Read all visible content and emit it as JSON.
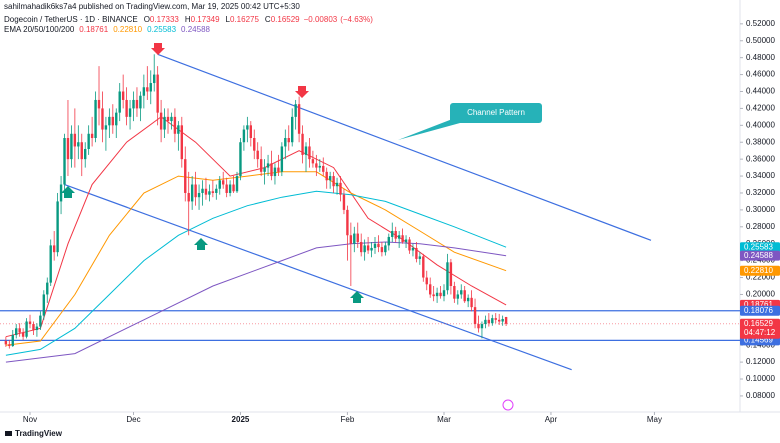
{
  "header": {
    "publisher": "sahilmahadik6ks7a4 published on TradingView.com, Mar 19, 2025 00:42 UTC+5:30"
  },
  "footer": {
    "brand": "TradingView"
  },
  "chart_data": {
    "type": "candlestick",
    "title": "Dogecoin / TetherUS · 1D · BINANCE",
    "ohlc_legend": [
      {
        "label": "O",
        "value": 0.17333
      },
      {
        "label": "H",
        "value": 0.17349
      },
      {
        "label": "L",
        "value": 0.16275
      },
      {
        "label": "C",
        "value": 0.16529
      }
    ],
    "change": {
      "value": -0.00803,
      "label": "−0.00803"
    },
    "change_pct": {
      "value": -4.63,
      "label": "(−4.63%)"
    },
    "countdown": "04:47:12",
    "up_color": "#089981",
    "down_color": "#f23645",
    "ohlc": [
      [
        0.145,
        0.15,
        0.138,
        0.141
      ],
      [
        0.141,
        0.146,
        0.136,
        0.139
      ],
      [
        0.139,
        0.158,
        0.138,
        0.152
      ],
      [
        0.152,
        0.165,
        0.148,
        0.16
      ],
      [
        0.16,
        0.166,
        0.15,
        0.155
      ],
      [
        0.155,
        0.16,
        0.146,
        0.15
      ],
      [
        0.15,
        0.172,
        0.148,
        0.168
      ],
      [
        0.168,
        0.176,
        0.16,
        0.165
      ],
      [
        0.165,
        0.168,
        0.152,
        0.158
      ],
      [
        0.158,
        0.166,
        0.15,
        0.162
      ],
      [
        0.162,
        0.18,
        0.158,
        0.175
      ],
      [
        0.175,
        0.205,
        0.17,
        0.2
      ],
      [
        0.2,
        0.22,
        0.19,
        0.214
      ],
      [
        0.214,
        0.265,
        0.21,
        0.258
      ],
      [
        0.258,
        0.275,
        0.24,
        0.25
      ],
      [
        0.25,
        0.32,
        0.245,
        0.31
      ],
      [
        0.31,
        0.34,
        0.295,
        0.33
      ],
      [
        0.33,
        0.39,
        0.32,
        0.385
      ],
      [
        0.385,
        0.43,
        0.34,
        0.36
      ],
      [
        0.36,
        0.4,
        0.35,
        0.39
      ],
      [
        0.39,
        0.42,
        0.35,
        0.375
      ],
      [
        0.375,
        0.4,
        0.36,
        0.38
      ],
      [
        0.38,
        0.39,
        0.34,
        0.36
      ],
      [
        0.36,
        0.38,
        0.35,
        0.372
      ],
      [
        0.372,
        0.4,
        0.365,
        0.39
      ],
      [
        0.39,
        0.41,
        0.375,
        0.385
      ],
      [
        0.385,
        0.44,
        0.38,
        0.43
      ],
      [
        0.43,
        0.47,
        0.4,
        0.42
      ],
      [
        0.42,
        0.44,
        0.38,
        0.395
      ],
      [
        0.395,
        0.41,
        0.37,
        0.4
      ],
      [
        0.4,
        0.42,
        0.385,
        0.41
      ],
      [
        0.41,
        0.425,
        0.39,
        0.4
      ],
      [
        0.4,
        0.42,
        0.385,
        0.415
      ],
      [
        0.415,
        0.45,
        0.405,
        0.44
      ],
      [
        0.44,
        0.46,
        0.42,
        0.43
      ],
      [
        0.43,
        0.445,
        0.4,
        0.41
      ],
      [
        0.41,
        0.43,
        0.395,
        0.42
      ],
      [
        0.42,
        0.44,
        0.405,
        0.43
      ],
      [
        0.43,
        0.445,
        0.41,
        0.42
      ],
      [
        0.42,
        0.44,
        0.405,
        0.435
      ],
      [
        0.435,
        0.46,
        0.42,
        0.445
      ],
      [
        0.445,
        0.47,
        0.43,
        0.44
      ],
      [
        0.44,
        0.465,
        0.425,
        0.45
      ],
      [
        0.45,
        0.484,
        0.44,
        0.46
      ],
      [
        0.46,
        0.47,
        0.4,
        0.415
      ],
      [
        0.415,
        0.43,
        0.38,
        0.395
      ],
      [
        0.395,
        0.42,
        0.385,
        0.41
      ],
      [
        0.41,
        0.42,
        0.39,
        0.405
      ],
      [
        0.405,
        0.415,
        0.395,
        0.41
      ],
      [
        0.41,
        0.42,
        0.38,
        0.39
      ],
      [
        0.39,
        0.405,
        0.37,
        0.4
      ],
      [
        0.4,
        0.41,
        0.35,
        0.36
      ],
      [
        0.36,
        0.375,
        0.31,
        0.32
      ],
      [
        0.32,
        0.345,
        0.27,
        0.31
      ],
      [
        0.31,
        0.34,
        0.3,
        0.33
      ],
      [
        0.33,
        0.345,
        0.305,
        0.315
      ],
      [
        0.315,
        0.33,
        0.3,
        0.32
      ],
      [
        0.32,
        0.335,
        0.305,
        0.325
      ],
      [
        0.325,
        0.338,
        0.312,
        0.318
      ],
      [
        0.318,
        0.33,
        0.31,
        0.322
      ],
      [
        0.322,
        0.335,
        0.315,
        0.32
      ],
      [
        0.32,
        0.33,
        0.312,
        0.325
      ],
      [
        0.325,
        0.34,
        0.318,
        0.335
      ],
      [
        0.335,
        0.345,
        0.325,
        0.33
      ],
      [
        0.33,
        0.338,
        0.315,
        0.32
      ],
      [
        0.32,
        0.335,
        0.316,
        0.33
      ],
      [
        0.33,
        0.34,
        0.32,
        0.322
      ],
      [
        0.322,
        0.345,
        0.32,
        0.34
      ],
      [
        0.34,
        0.385,
        0.335,
        0.38
      ],
      [
        0.38,
        0.4,
        0.37,
        0.395
      ],
      [
        0.395,
        0.41,
        0.38,
        0.4
      ],
      [
        0.4,
        0.405,
        0.375,
        0.385
      ],
      [
        0.385,
        0.395,
        0.36,
        0.37
      ],
      [
        0.37,
        0.38,
        0.35,
        0.36
      ],
      [
        0.36,
        0.375,
        0.34,
        0.345
      ],
      [
        0.345,
        0.36,
        0.33,
        0.35
      ],
      [
        0.35,
        0.365,
        0.34,
        0.355
      ],
      [
        0.355,
        0.37,
        0.335,
        0.34
      ],
      [
        0.34,
        0.355,
        0.33,
        0.35
      ],
      [
        0.35,
        0.365,
        0.34,
        0.345
      ],
      [
        0.345,
        0.38,
        0.34,
        0.375
      ],
      [
        0.375,
        0.395,
        0.36,
        0.385
      ],
      [
        0.385,
        0.4,
        0.37,
        0.38
      ],
      [
        0.38,
        0.42,
        0.375,
        0.41
      ],
      [
        0.41,
        0.43,
        0.395,
        0.425
      ],
      [
        0.425,
        0.434,
        0.38,
        0.39
      ],
      [
        0.39,
        0.4,
        0.355,
        0.365
      ],
      [
        0.365,
        0.38,
        0.345,
        0.375
      ],
      [
        0.375,
        0.385,
        0.35,
        0.36
      ],
      [
        0.36,
        0.37,
        0.35,
        0.355
      ],
      [
        0.355,
        0.365,
        0.34,
        0.35
      ],
      [
        0.35,
        0.36,
        0.345,
        0.352
      ],
      [
        0.352,
        0.362,
        0.34,
        0.345
      ],
      [
        0.345,
        0.35,
        0.325,
        0.335
      ],
      [
        0.335,
        0.345,
        0.325,
        0.34
      ],
      [
        0.34,
        0.345,
        0.32,
        0.328
      ],
      [
        0.328,
        0.338,
        0.318,
        0.332
      ],
      [
        0.332,
        0.34,
        0.31,
        0.318
      ],
      [
        0.318,
        0.325,
        0.295,
        0.3
      ],
      [
        0.3,
        0.305,
        0.24,
        0.27
      ],
      [
        0.27,
        0.285,
        0.21,
        0.26
      ],
      [
        0.26,
        0.28,
        0.25,
        0.272
      ],
      [
        0.272,
        0.285,
        0.255,
        0.262
      ],
      [
        0.262,
        0.272,
        0.245,
        0.25
      ],
      [
        0.25,
        0.265,
        0.24,
        0.258
      ],
      [
        0.258,
        0.268,
        0.248,
        0.252
      ],
      [
        0.252,
        0.262,
        0.244,
        0.255
      ],
      [
        0.255,
        0.268,
        0.248,
        0.26
      ],
      [
        0.26,
        0.27,
        0.25,
        0.256
      ],
      [
        0.256,
        0.262,
        0.245,
        0.25
      ],
      [
        0.25,
        0.262,
        0.246,
        0.258
      ],
      [
        0.258,
        0.272,
        0.252,
        0.268
      ],
      [
        0.268,
        0.285,
        0.262,
        0.275
      ],
      [
        0.275,
        0.28,
        0.262,
        0.266
      ],
      [
        0.266,
        0.275,
        0.255,
        0.27
      ],
      [
        0.27,
        0.278,
        0.26,
        0.262
      ],
      [
        0.262,
        0.27,
        0.255,
        0.265
      ],
      [
        0.265,
        0.268,
        0.248,
        0.252
      ],
      [
        0.252,
        0.26,
        0.245,
        0.255
      ],
      [
        0.255,
        0.262,
        0.238,
        0.242
      ],
      [
        0.242,
        0.25,
        0.235,
        0.245
      ],
      [
        0.245,
        0.248,
        0.215,
        0.22
      ],
      [
        0.22,
        0.228,
        0.205,
        0.212
      ],
      [
        0.212,
        0.22,
        0.196,
        0.2
      ],
      [
        0.2,
        0.21,
        0.192,
        0.198
      ],
      [
        0.198,
        0.208,
        0.19,
        0.202
      ],
      [
        0.202,
        0.21,
        0.195,
        0.198
      ],
      [
        0.198,
        0.212,
        0.192,
        0.205
      ],
      [
        0.205,
        0.248,
        0.2,
        0.238
      ],
      [
        0.238,
        0.242,
        0.2,
        0.21
      ],
      [
        0.21,
        0.215,
        0.19,
        0.195
      ],
      [
        0.195,
        0.205,
        0.188,
        0.2
      ],
      [
        0.2,
        0.212,
        0.195,
        0.205
      ],
      [
        0.205,
        0.21,
        0.19,
        0.192
      ],
      [
        0.192,
        0.2,
        0.185,
        0.196
      ],
      [
        0.196,
        0.205,
        0.18,
        0.185
      ],
      [
        0.185,
        0.195,
        0.16,
        0.165
      ],
      [
        0.165,
        0.175,
        0.155,
        0.16
      ],
      [
        0.16,
        0.168,
        0.148,
        0.165
      ],
      [
        0.165,
        0.175,
        0.16,
        0.17
      ],
      [
        0.17,
        0.178,
        0.162,
        0.166
      ],
      [
        0.166,
        0.176,
        0.163,
        0.172
      ],
      [
        0.172,
        0.178,
        0.166,
        0.17
      ],
      [
        0.17,
        0.177,
        0.164,
        0.168
      ],
      [
        0.168,
        0.175,
        0.163,
        0.171
      ],
      [
        0.17333,
        0.17349,
        0.16275,
        0.16529
      ]
    ],
    "ema_title": "EMA 20/50/100/200",
    "ema": [
      {
        "color": "#f23645",
        "x": [
          0,
          10,
          18,
          25,
          35,
          45,
          55,
          65,
          75,
          85,
          95,
          105,
          115,
          125,
          135,
          145
        ],
        "values": [
          0.15,
          0.16,
          0.26,
          0.33,
          0.38,
          0.41,
          0.38,
          0.34,
          0.35,
          0.37,
          0.35,
          0.29,
          0.265,
          0.235,
          0.21,
          0.18761
        ],
        "last": {
          "value": 0.18761,
          "label": "0.18761"
        }
      },
      {
        "color": "#ff9800",
        "x": [
          0,
          10,
          20,
          30,
          40,
          50,
          60,
          70,
          80,
          90,
          100,
          110,
          120,
          130,
          145
        ],
        "values": [
          0.14,
          0.145,
          0.2,
          0.27,
          0.32,
          0.34,
          0.335,
          0.34,
          0.345,
          0.345,
          0.32,
          0.3,
          0.275,
          0.25,
          0.2281
        ],
        "last": {
          "value": 0.2281,
          "label": "0.22810"
        }
      },
      {
        "color": "#00bcd4",
        "x": [
          0,
          10,
          20,
          30,
          40,
          50,
          60,
          70,
          80,
          90,
          100,
          110,
          120,
          130,
          145
        ],
        "values": [
          0.128,
          0.135,
          0.16,
          0.2,
          0.24,
          0.27,
          0.29,
          0.305,
          0.315,
          0.322,
          0.318,
          0.31,
          0.295,
          0.28,
          0.25583
        ],
        "last": {
          "value": 0.25583,
          "label": "0.25583"
        }
      },
      {
        "color": "#7e57c2",
        "x": [
          0,
          20,
          40,
          60,
          80,
          90,
          100,
          110,
          120,
          130,
          145
        ],
        "values": [
          0.12,
          0.13,
          0.17,
          0.21,
          0.24,
          0.255,
          0.26,
          0.262,
          0.26,
          0.255,
          0.24588
        ],
        "last": {
          "value": 0.24588,
          "label": "0.24588"
        }
      }
    ],
    "channel": {
      "color": "#3d6fe0",
      "lines": [
        {
          "x": [
            44,
            187
          ],
          "values": [
            0.484,
            0.264
          ]
        },
        {
          "x": [
            17,
            164
          ],
          "values": [
            0.33,
            0.111
          ]
        }
      ],
      "annotation": "Channel Pattern",
      "annotation_color": "#26b2b8"
    },
    "levels": [
      {
        "value": 0.18076,
        "label": "0.18076"
      },
      {
        "value": 0.14569,
        "label": "0.14569"
      }
    ],
    "level_color": "#3d6fe0",
    "xlim": [
      -1.7,
      212.8
    ],
    "xticks": [
      {
        "value": 7,
        "label": "Nov"
      },
      {
        "value": 37,
        "label": "Dec"
      },
      {
        "value": 68,
        "label": "2025"
      },
      {
        "value": 99,
        "label": "Feb"
      },
      {
        "value": 127,
        "label": "Mar"
      },
      {
        "value": 158,
        "label": "Apr"
      },
      {
        "value": 188,
        "label": "May"
      }
    ],
    "ylim": [
      0.061,
      0.534
    ],
    "yticks": [
      {
        "value": 0.08,
        "label": "0.08000"
      },
      {
        "value": 0.1,
        "label": "0.10000"
      },
      {
        "value": 0.12,
        "label": "0.12000"
      },
      {
        "value": 0.14,
        "label": "0.14000"
      },
      {
        "value": 0.16,
        "label": "0.16000"
      },
      {
        "value": 0.18,
        "label": "0.18000"
      },
      {
        "value": 0.2,
        "label": "0.20000"
      },
      {
        "value": 0.22,
        "label": "0.22000"
      },
      {
        "value": 0.24,
        "label": "0.24000"
      },
      {
        "value": 0.26,
        "label": "0.26000"
      },
      {
        "value": 0.28,
        "label": "0.28000"
      },
      {
        "value": 0.3,
        "label": "0.30000"
      },
      {
        "value": 0.32,
        "label": "0.32000"
      },
      {
        "value": 0.34,
        "label": "0.34000"
      },
      {
        "value": 0.36,
        "label": "0.36000"
      },
      {
        "value": 0.38,
        "label": "0.38000"
      },
      {
        "value": 0.4,
        "label": "0.40000"
      },
      {
        "value": 0.42,
        "label": "0.42000"
      },
      {
        "value": 0.44,
        "label": "0.44000"
      },
      {
        "value": 0.46,
        "label": "0.46000"
      },
      {
        "value": 0.48,
        "label": "0.48000"
      },
      {
        "value": 0.5,
        "label": "0.50000"
      },
      {
        "value": 0.52,
        "label": "0.52000"
      }
    ]
  }
}
